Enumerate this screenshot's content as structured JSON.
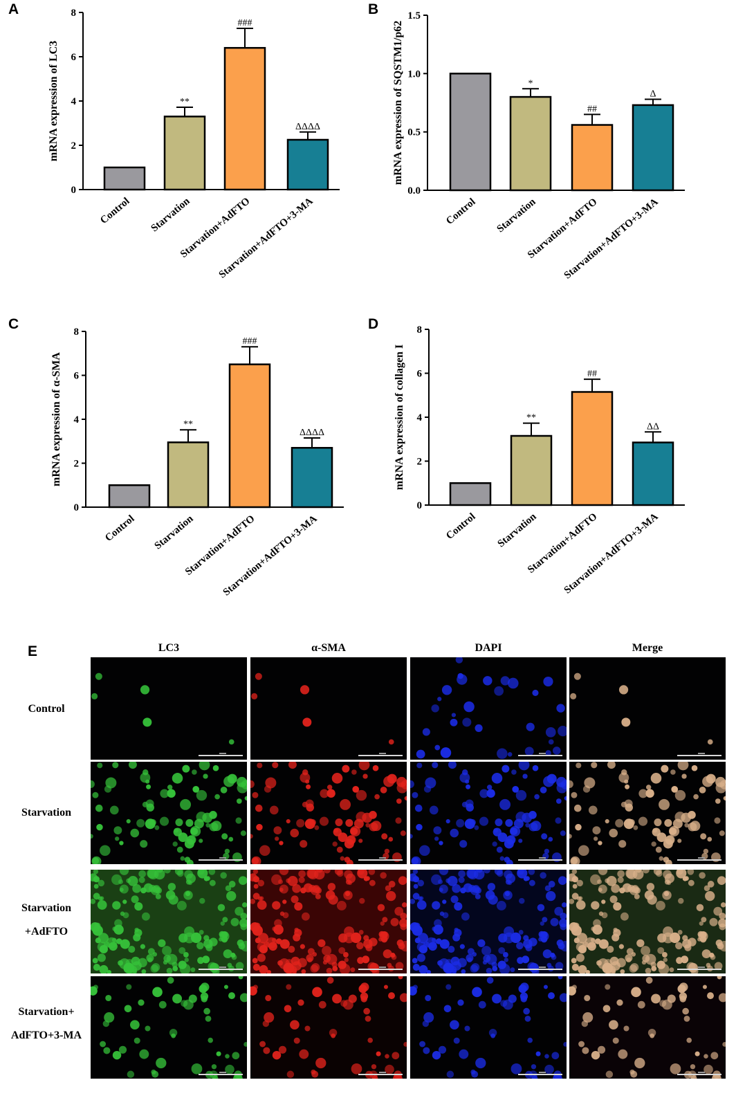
{
  "colors": {
    "control": "#9a999e",
    "starvation": "#c1b97f",
    "adfto": "#fba04c",
    "three_ma": "#177f94",
    "lc3_channel": "#36c23a",
    "sma_channel": "#e2231c",
    "dapi_channel": "#1b2ce6"
  },
  "chart_data": [
    {
      "panel": "A",
      "type": "bar",
      "ylabel": "mRNA expression of LC3",
      "categories": [
        "Control",
        "Starvation",
        "Starvation+AdFTO",
        "Starvation+AdFTO+3-MA"
      ],
      "values": [
        1.0,
        3.3,
        6.4,
        2.25
      ],
      "errors": [
        0,
        0.42,
        0.88,
        0.35
      ],
      "significance": [
        "",
        "**",
        "###",
        "ΔΔΔΔ"
      ],
      "ylim": [
        0,
        8
      ],
      "yticks": [
        "0",
        "2",
        "4",
        "6",
        "8"
      ],
      "ytick_values": [
        0,
        2,
        4,
        6,
        8
      ]
    },
    {
      "panel": "B",
      "type": "bar",
      "ylabel": "mRNA expression of SQSTM1/p62",
      "categories": [
        "Control",
        "Starvation",
        "Starvation+AdFTO",
        "Starvation+AdFTO+3-MA"
      ],
      "values": [
        1.0,
        0.8,
        0.56,
        0.73
      ],
      "errors": [
        0,
        0.07,
        0.09,
        0.05
      ],
      "significance": [
        "",
        "*",
        "##",
        "Δ"
      ],
      "ylim": [
        0,
        1.5
      ],
      "yticks": [
        "0.0",
        "0.5",
        "1.0",
        "1.5"
      ],
      "ytick_values": [
        0,
        0.5,
        1.0,
        1.5
      ]
    },
    {
      "panel": "C",
      "type": "bar",
      "ylabel": "mRNA expression of α-SMA",
      "categories": [
        "Control",
        "Starvation",
        "Starvation+AdFTO",
        "Starvation+AdFTO+3-MA"
      ],
      "values": [
        1.0,
        2.95,
        6.5,
        2.7
      ],
      "errors": [
        0,
        0.57,
        0.8,
        0.45
      ],
      "significance": [
        "",
        "**",
        "###",
        "ΔΔΔΔ"
      ],
      "ylim": [
        0,
        8
      ],
      "yticks": [
        "0",
        "2",
        "4",
        "6",
        "8"
      ],
      "ytick_values": [
        0,
        2,
        4,
        6,
        8
      ]
    },
    {
      "panel": "D",
      "type": "bar",
      "ylabel": "mRNA expression of collagen I",
      "categories": [
        "Control",
        "Starvation",
        "Starvation+AdFTO",
        "Starvation+AdFTO+3-MA"
      ],
      "values": [
        1.0,
        3.15,
        5.15,
        2.85
      ],
      "errors": [
        0,
        0.58,
        0.58,
        0.48
      ],
      "significance": [
        "",
        "**",
        "##",
        "ΔΔ"
      ],
      "ylim": [
        0,
        8
      ],
      "yticks": [
        "0",
        "2",
        "4",
        "6",
        "8"
      ],
      "ytick_values": [
        0,
        2,
        4,
        6,
        8
      ]
    }
  ],
  "panel_e": {
    "letter": "E",
    "columns": [
      "LC3",
      "α-SMA",
      "DAPI",
      "Merge"
    ],
    "rows": [
      {
        "label_line1": "Control",
        "label_line2": ""
      },
      {
        "label_line1": "Starvation",
        "label_line2": ""
      },
      {
        "label_line1": "Starvation",
        "label_line2": "+AdFTO"
      },
      {
        "label_line1": "Starvation+",
        "label_line2": "AdFTO+3-MA"
      }
    ]
  }
}
